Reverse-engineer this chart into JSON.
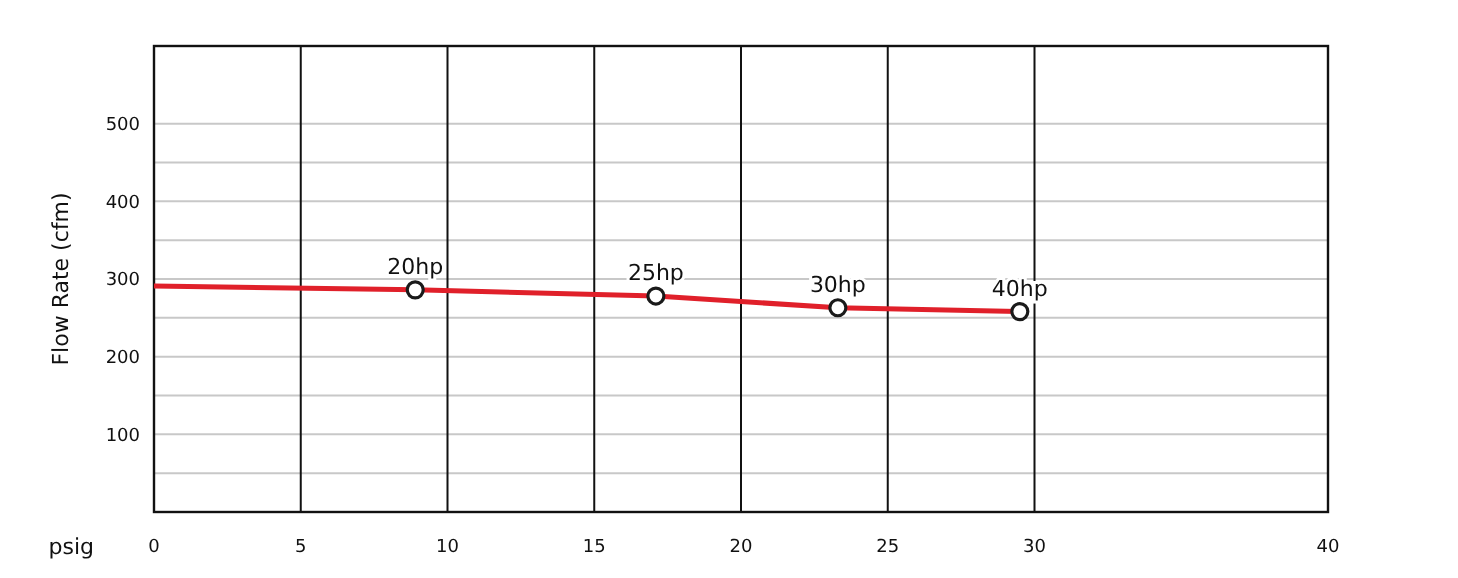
{
  "chart_data": {
    "type": "line",
    "xlabel": "psig",
    "ylabel": "Flow Rate (cfm)",
    "xlim": [
      0,
      40
    ],
    "xticks": [
      0,
      5,
      10,
      15,
      20,
      25,
      30,
      40
    ],
    "ylim": [
      0,
      600
    ],
    "yticks": [
      {
        "value": 50,
        "label": null
      },
      100,
      {
        "value": 150,
        "label": null
      },
      200,
      {
        "value": 250,
        "label": null
      },
      300,
      {
        "value": 350,
        "label": null
      },
      400,
      {
        "value": 450,
        "label": null
      },
      500
    ],
    "grid": true,
    "series": [
      {
        "type": "line",
        "color": "#e0202a",
        "marker": "none",
        "x": [
          0,
          8.9,
          17.1,
          23.3,
          29.5
        ],
        "values": [
          291,
          286,
          278,
          263,
          258
        ]
      },
      {
        "type": "scatter",
        "color": "#1a1a1a",
        "marker": "circle",
        "x": [
          8.9,
          17.1,
          23.3,
          29.5
        ],
        "values": [
          286,
          278,
          263,
          258
        ]
      }
    ],
    "annotations": [
      {
        "text": "20hp",
        "x": 8.9,
        "y": 286
      },
      {
        "text": "25hp",
        "x": 17.1,
        "y": 278
      },
      {
        "text": "30hp",
        "x": 23.3,
        "y": 263
      },
      {
        "text": "40hp",
        "x": 29.5,
        "y": 258
      }
    ]
  }
}
